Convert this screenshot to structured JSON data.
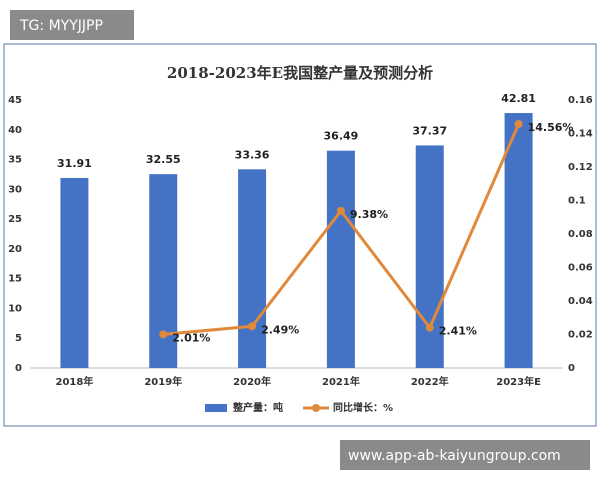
{
  "watermark_top": "TG: MYYJJPP",
  "watermark_bottom": "www.app-ab-kaiyungroup.com",
  "chart_data": {
    "type": "bar",
    "title": "2018-2023年E我国整产量及预测分析",
    "categories": [
      "2018年",
      "2019年",
      "2020年",
      "2021年",
      "2022年",
      "2023年E"
    ],
    "series": [
      {
        "name": "整产量：吨",
        "type": "bar",
        "color": "#4472c4",
        "values": [
          31.91,
          32.55,
          33.36,
          36.49,
          37.37,
          42.81
        ]
      },
      {
        "name": "同比增长：%",
        "type": "line",
        "axis": "y2",
        "color": "#e0893a",
        "values": [
          null,
          0.0201,
          0.0249,
          0.0938,
          0.0241,
          0.1456
        ],
        "value_labels": [
          null,
          "2.01%",
          "2.49%",
          "9.38%",
          "2.41%",
          "14.56%"
        ]
      }
    ],
    "ylim": [
      0,
      45
    ],
    "yticks": [
      0,
      5,
      10,
      15,
      20,
      25,
      30,
      35,
      40,
      45
    ],
    "y2lim": [
      0,
      0.16
    ],
    "y2ticks": [
      0,
      0.02,
      0.04,
      0.06,
      0.08,
      0.1,
      0.12,
      0.14,
      0.16
    ],
    "legend": "bottom"
  }
}
